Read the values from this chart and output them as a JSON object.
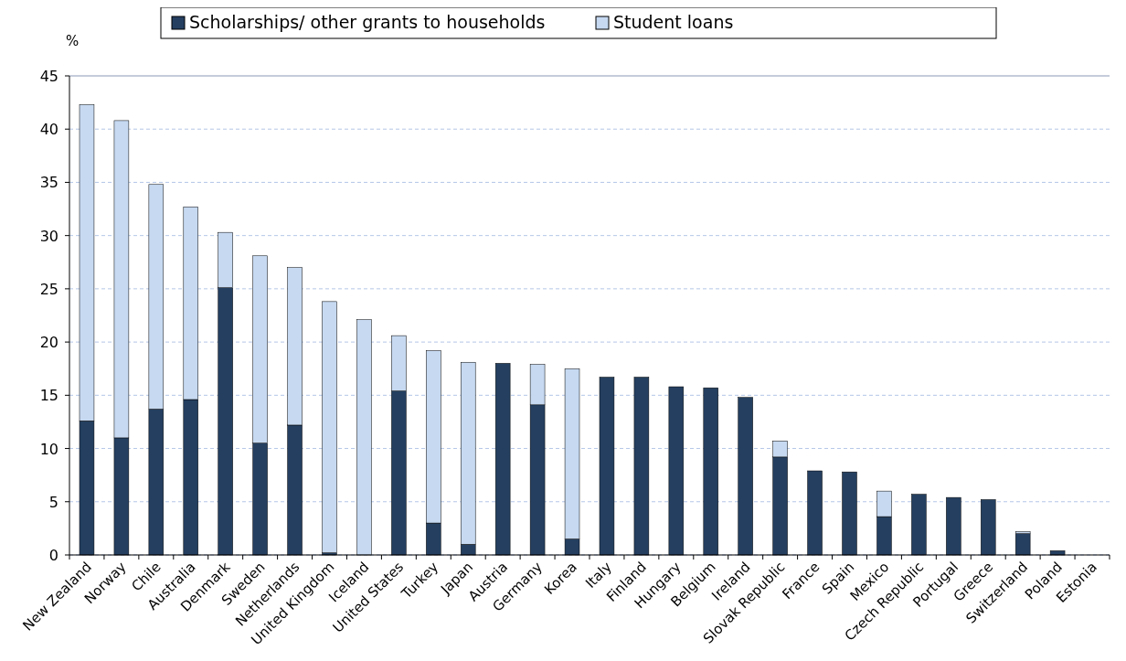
{
  "chart_data": {
    "type": "bar",
    "stacked": true,
    "ylabel": "%",
    "legend": "top",
    "grid": "y",
    "categories": [
      "New Zealand",
      "Norway",
      "Chile",
      "Australia",
      "Denmark",
      "Sweden",
      "Netherlands",
      "United Kingdom",
      "Iceland",
      "United States",
      "Turkey",
      "Japan",
      "Austria",
      "Germany",
      "Korea",
      "Italy",
      "Finland",
      "Hungary",
      "Belgium",
      "Ireland",
      "Slovak Republic",
      "France",
      "Spain",
      "Mexico",
      "Czech Republic",
      "Portugal",
      "Greece",
      "Switzerland",
      "Poland",
      "Estonia"
    ],
    "series": [
      {
        "name": "Scholarships/ other grants to households",
        "color": "#243f60",
        "values": [
          12.6,
          11.0,
          13.7,
          14.6,
          25.1,
          10.5,
          12.2,
          0.2,
          null,
          15.4,
          3.0,
          1.0,
          18.0,
          14.1,
          1.5,
          16.7,
          16.7,
          15.8,
          15.7,
          14.8,
          9.2,
          7.9,
          7.8,
          3.6,
          5.7,
          5.4,
          5.2,
          2.0,
          0.4,
          null
        ]
      },
      {
        "name": "Student loans",
        "color": "#c6d9f1",
        "values": [
          29.7,
          29.8,
          21.1,
          18.1,
          5.2,
          17.6,
          14.8,
          23.6,
          22.1,
          5.2,
          16.2,
          17.1,
          0,
          3.8,
          16.0,
          0,
          0,
          0,
          0,
          0,
          1.5,
          0,
          0,
          2.4,
          0,
          0,
          0,
          0.2,
          0,
          null
        ]
      }
    ],
    "ylim": [
      0,
      45
    ],
    "yticks": [
      0,
      5,
      10,
      15,
      20,
      25,
      30,
      35,
      40,
      45
    ]
  }
}
